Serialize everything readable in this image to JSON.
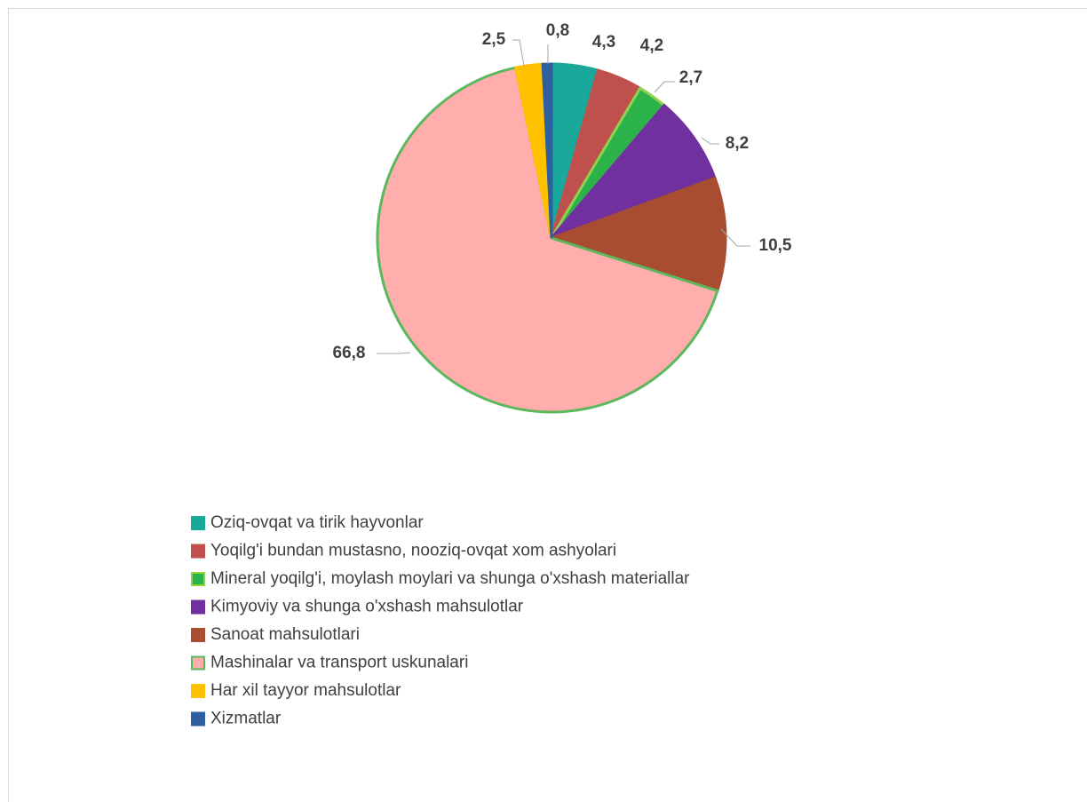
{
  "chart_data": {
    "type": "pie",
    "categories": [
      "Oziq-ovqat va tirik hayvonlar",
      "Yoqilg'i bundan mustasno, nooziq-ovqat xom ashyolari",
      "Mineral yoqilg'i, moylash moylari va shunga o'xshash materiallar",
      "Kimyoviy va shunga o'xshash mahsulotlar",
      "Sanoat mahsulotlari",
      "Mashinalar va transport uskunalari",
      "Har xil tayyor mahsulotlar",
      "Xizmatlar"
    ],
    "values": [
      4.3,
      4.2,
      2.7,
      8.2,
      10.5,
      66.8,
      2.5,
      0.8
    ],
    "value_labels": [
      "4,3",
      "4,2",
      "2,7",
      "8,2",
      "10,5",
      "66,8",
      "2,5",
      "0,8"
    ],
    "colors": [
      "#1aa89a",
      "#c0504d",
      "#2bb34a",
      "#7030a0",
      "#a84c32",
      "#ffadad",
      "#ffc000",
      "#2e5f9e"
    ],
    "edgecolors": [
      "#1aa89a",
      "#c0504d",
      "#92d050",
      "#7030a0",
      "#a84c32",
      "#5cb85c",
      "#ffc000",
      "#2e5f9e"
    ],
    "legend": "bottom"
  }
}
